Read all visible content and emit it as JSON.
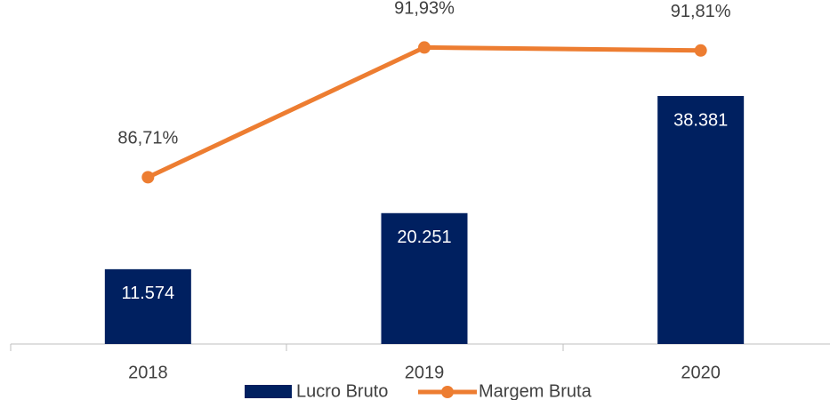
{
  "chart_data": {
    "type": "bar+line",
    "categories": [
      "2018",
      "2019",
      "2020"
    ],
    "series": [
      {
        "name": "Lucro Bruto",
        "type": "bar",
        "color": "#002060",
        "values": [
          11574,
          20251,
          38381
        ],
        "value_labels": [
          "11.574",
          "20.251",
          "38.381"
        ]
      },
      {
        "name": "Margem Bruta",
        "type": "line",
        "axis": "y2",
        "color": "#ED7D31",
        "values": [
          86.71,
          91.93,
          91.81
        ],
        "value_labels": [
          "86,71%",
          "91,93%",
          "91,81%"
        ]
      }
    ],
    "ylim": [
      0,
      50000
    ],
    "y2lim": [
      80,
      93
    ],
    "legend": "bottom"
  }
}
